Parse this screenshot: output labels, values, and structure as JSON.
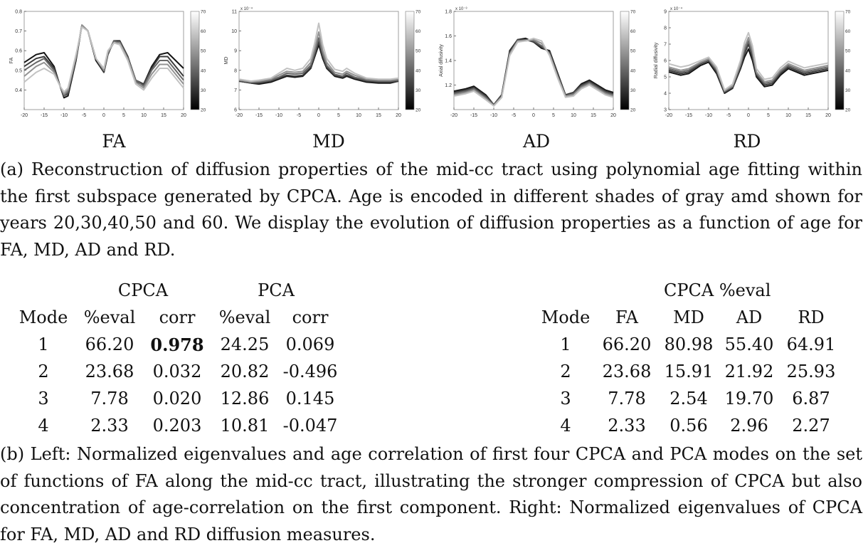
{
  "panel_labels": [
    "FA",
    "MD",
    "AD",
    "RD"
  ],
  "chart_data": [
    {
      "type": "line",
      "title": "",
      "ylabel": "FA",
      "xlim": [
        -20,
        20
      ],
      "ylim": [
        0.3,
        0.8
      ],
      "xticks": [
        -20,
        -15,
        -10,
        -5,
        0,
        5,
        10,
        15,
        20
      ],
      "yticks": [
        0.4,
        0.5,
        0.6,
        0.7,
        0.8
      ],
      "ytick_labels": [
        "0.4",
        "0.5",
        "0.6",
        "0.7",
        "0.8"
      ],
      "colorbar": {
        "ticks": [
          20,
          30,
          40,
          50,
          60,
          70
        ]
      },
      "x": [
        -20,
        -17,
        -15,
        -12.5,
        -11,
        -10,
        -9,
        -7,
        -5.5,
        -4,
        -2,
        0,
        1,
        2.5,
        4,
        6,
        8,
        10,
        12,
        14,
        16,
        18,
        20
      ],
      "series": [
        {
          "age": 20,
          "values": [
            0.54,
            0.58,
            0.59,
            0.52,
            0.42,
            0.36,
            0.37,
            0.55,
            0.73,
            0.7,
            0.55,
            0.49,
            0.58,
            0.65,
            0.65,
            0.57,
            0.44,
            0.43,
            0.52,
            0.58,
            0.59,
            0.55,
            0.51
          ]
        },
        {
          "age": 30,
          "values": [
            0.52,
            0.56,
            0.57,
            0.51,
            0.42,
            0.37,
            0.38,
            0.56,
            0.73,
            0.7,
            0.56,
            0.49,
            0.58,
            0.65,
            0.65,
            0.57,
            0.45,
            0.43,
            0.51,
            0.57,
            0.57,
            0.52,
            0.47
          ]
        },
        {
          "age": 40,
          "values": [
            0.5,
            0.54,
            0.56,
            0.5,
            0.42,
            0.37,
            0.39,
            0.56,
            0.73,
            0.7,
            0.56,
            0.5,
            0.59,
            0.65,
            0.64,
            0.56,
            0.45,
            0.42,
            0.5,
            0.55,
            0.55,
            0.5,
            0.45
          ]
        },
        {
          "age": 50,
          "values": [
            0.47,
            0.52,
            0.54,
            0.49,
            0.42,
            0.38,
            0.4,
            0.57,
            0.73,
            0.7,
            0.56,
            0.5,
            0.59,
            0.64,
            0.64,
            0.56,
            0.44,
            0.41,
            0.48,
            0.53,
            0.53,
            0.48,
            0.43
          ]
        },
        {
          "age": 60,
          "values": [
            0.44,
            0.49,
            0.51,
            0.48,
            0.42,
            0.39,
            0.41,
            0.58,
            0.72,
            0.7,
            0.56,
            0.51,
            0.6,
            0.64,
            0.63,
            0.55,
            0.43,
            0.4,
            0.46,
            0.51,
            0.51,
            0.46,
            0.41
          ]
        }
      ]
    },
    {
      "type": "line",
      "title": "",
      "ylabel": "MD",
      "axis_multiplier": "x 10⁻⁴",
      "xlim": [
        -20,
        20
      ],
      "ylim": [
        6,
        11
      ],
      "xticks": [
        -20,
        -15,
        -10,
        -5,
        0,
        5,
        10,
        15,
        20
      ],
      "yticks": [
        6,
        7,
        8,
        9,
        10,
        11
      ],
      "ytick_labels": [
        "6",
        "7",
        "8",
        "9",
        "10",
        "11"
      ],
      "colorbar": {
        "ticks": [
          20,
          30,
          40,
          50,
          60,
          70
        ]
      },
      "x": [
        -20,
        -17,
        -15,
        -12,
        -10,
        -8,
        -6,
        -4,
        -2,
        -1,
        0,
        1,
        2,
        4,
        6,
        7,
        9,
        12,
        15,
        18,
        20
      ],
      "series": [
        {
          "age": 20,
          "values": [
            7.45,
            7.35,
            7.3,
            7.4,
            7.55,
            7.7,
            7.65,
            7.7,
            8.1,
            8.7,
            9.3,
            8.6,
            8.1,
            7.7,
            7.6,
            7.7,
            7.55,
            7.4,
            7.35,
            7.35,
            7.45
          ]
        },
        {
          "age": 30,
          "values": [
            7.45,
            7.35,
            7.35,
            7.45,
            7.6,
            7.75,
            7.7,
            7.75,
            8.15,
            8.8,
            9.45,
            8.7,
            8.15,
            7.75,
            7.65,
            7.75,
            7.6,
            7.45,
            7.4,
            7.4,
            7.45
          ]
        },
        {
          "age": 40,
          "values": [
            7.5,
            7.4,
            7.4,
            7.5,
            7.65,
            7.85,
            7.8,
            7.85,
            8.25,
            8.9,
            9.65,
            8.8,
            8.25,
            7.8,
            7.7,
            7.85,
            7.65,
            7.5,
            7.45,
            7.45,
            7.5
          ]
        },
        {
          "age": 50,
          "values": [
            7.5,
            7.4,
            7.45,
            7.55,
            7.75,
            7.95,
            7.9,
            7.95,
            8.4,
            9.1,
            9.95,
            9.0,
            8.4,
            7.9,
            7.8,
            7.95,
            7.75,
            7.55,
            7.5,
            7.5,
            7.55
          ]
        },
        {
          "age": 60,
          "values": [
            7.55,
            7.45,
            7.5,
            7.6,
            7.85,
            8.1,
            8.0,
            8.1,
            8.6,
            9.4,
            10.4,
            9.3,
            8.6,
            8.05,
            7.95,
            8.1,
            7.85,
            7.6,
            7.55,
            7.55,
            7.6
          ]
        }
      ]
    },
    {
      "type": "line",
      "title": "",
      "ylabel": "Axial diffusivity",
      "axis_multiplier": "x 10⁻³",
      "xlim": [
        -20,
        20
      ],
      "ylim": [
        1.0,
        1.8
      ],
      "xticks": [
        -20,
        -15,
        -10,
        -5,
        0,
        5,
        10,
        15,
        20
      ],
      "yticks": [
        1.2,
        1.4,
        1.6,
        1.8
      ],
      "ytick_labels": [
        "1.2",
        "1.4",
        "1.6",
        "1.8"
      ],
      "colorbar": {
        "ticks": [
          20,
          30,
          40,
          50,
          60,
          70
        ]
      },
      "x": [
        -20,
        -17,
        -15,
        -12,
        -10,
        -8,
        -6,
        -4,
        -2,
        0,
        2,
        4,
        6,
        8,
        10,
        12,
        14,
        16,
        18,
        20
      ],
      "series": [
        {
          "age": 20,
          "values": [
            1.15,
            1.17,
            1.19,
            1.12,
            1.04,
            1.12,
            1.48,
            1.57,
            1.58,
            1.55,
            1.5,
            1.48,
            1.3,
            1.12,
            1.14,
            1.21,
            1.24,
            1.2,
            1.16,
            1.14
          ]
        },
        {
          "age": 30,
          "values": [
            1.14,
            1.16,
            1.18,
            1.11,
            1.04,
            1.12,
            1.47,
            1.57,
            1.57,
            1.55,
            1.51,
            1.47,
            1.29,
            1.12,
            1.14,
            1.2,
            1.23,
            1.19,
            1.15,
            1.13
          ]
        },
        {
          "age": 40,
          "values": [
            1.13,
            1.15,
            1.17,
            1.1,
            1.04,
            1.11,
            1.46,
            1.56,
            1.57,
            1.56,
            1.52,
            1.46,
            1.28,
            1.11,
            1.13,
            1.19,
            1.22,
            1.18,
            1.14,
            1.12
          ]
        },
        {
          "age": 50,
          "values": [
            1.12,
            1.14,
            1.16,
            1.09,
            1.03,
            1.1,
            1.45,
            1.56,
            1.56,
            1.57,
            1.54,
            1.45,
            1.27,
            1.11,
            1.12,
            1.18,
            1.21,
            1.17,
            1.13,
            1.11
          ]
        },
        {
          "age": 60,
          "values": [
            1.11,
            1.13,
            1.15,
            1.08,
            1.03,
            1.1,
            1.44,
            1.55,
            1.56,
            1.58,
            1.56,
            1.44,
            1.26,
            1.1,
            1.11,
            1.17,
            1.2,
            1.16,
            1.12,
            1.1
          ]
        }
      ]
    },
    {
      "type": "line",
      "title": "",
      "ylabel": "Radial diffusivity",
      "axis_multiplier": "x 10⁻⁴",
      "xlim": [
        -20,
        20
      ],
      "ylim": [
        3,
        9
      ],
      "xticks": [
        -20,
        -15,
        -10,
        -5,
        0,
        5,
        10,
        15,
        20
      ],
      "yticks": [
        3,
        4,
        5,
        6,
        7,
        8,
        9
      ],
      "ytick_labels": [
        "3",
        "4",
        "5",
        "6",
        "7",
        "8",
        "9"
      ],
      "colorbar": {
        "ticks": [
          20,
          30,
          40,
          50,
          60,
          70
        ]
      },
      "x": [
        -20,
        -17,
        -15,
        -12,
        -10,
        -8,
        -6,
        -4,
        -2,
        -1,
        0,
        1,
        2,
        4,
        6,
        8,
        10,
        12,
        14,
        16,
        18,
        20
      ],
      "series": [
        {
          "age": 20,
          "values": [
            5.3,
            5.1,
            5.2,
            5.7,
            5.9,
            5.2,
            4.0,
            4.3,
            5.5,
            6.2,
            6.7,
            6.0,
            5.0,
            4.4,
            4.5,
            5.1,
            5.5,
            5.3,
            5.1,
            5.2,
            5.3,
            5.4
          ]
        },
        {
          "age": 30,
          "values": [
            5.4,
            5.2,
            5.3,
            5.8,
            6.0,
            5.3,
            4.05,
            4.35,
            5.6,
            6.4,
            7.0,
            6.2,
            5.1,
            4.5,
            4.6,
            5.2,
            5.6,
            5.4,
            5.2,
            5.3,
            5.4,
            5.5
          ]
        },
        {
          "age": 40,
          "values": [
            5.5,
            5.3,
            5.4,
            5.85,
            6.05,
            5.4,
            4.1,
            4.4,
            5.7,
            6.6,
            7.2,
            6.4,
            5.2,
            4.6,
            4.7,
            5.3,
            5.7,
            5.5,
            5.3,
            5.4,
            5.5,
            5.6
          ]
        },
        {
          "age": 50,
          "values": [
            5.6,
            5.4,
            5.5,
            5.9,
            6.1,
            5.5,
            4.15,
            4.45,
            5.8,
            6.8,
            7.4,
            6.6,
            5.3,
            4.7,
            4.8,
            5.4,
            5.8,
            5.6,
            5.4,
            5.5,
            5.6,
            5.7
          ]
        },
        {
          "age": 60,
          "values": [
            5.8,
            5.6,
            5.7,
            6.0,
            6.2,
            5.6,
            4.2,
            4.55,
            6.0,
            7.1,
            7.7,
            6.9,
            5.5,
            4.85,
            4.95,
            5.55,
            5.95,
            5.75,
            5.55,
            5.65,
            5.75,
            5.85
          ]
        }
      ]
    }
  ],
  "caption_a": "(a) Reconstruction of diffusion properties of the mid-cc tract using polynomial age fitting within the first subspace generated by CPCA. Age is encoded in different shades of gray amd shown for years 20,30,40,50 and 60. We display the evolution of diffusion properties as a function of age for FA, MD, AD and RD.",
  "table_left": {
    "group_headers": [
      "CPCA",
      "PCA"
    ],
    "columns": [
      "Mode",
      "%eval",
      "corr",
      "%eval",
      "corr"
    ],
    "rows": [
      [
        "1",
        "66.20",
        "0.978",
        "24.25",
        "0.069"
      ],
      [
        "2",
        "23.68",
        "0.032",
        "20.82",
        "-0.496"
      ],
      [
        "3",
        "7.78",
        "0.020",
        "12.86",
        "0.145"
      ],
      [
        "4",
        "2.33",
        "0.203",
        "10.81",
        "-0.047"
      ]
    ]
  },
  "table_right": {
    "group_header": "CPCA %eval",
    "columns": [
      "Mode",
      "FA",
      "MD",
      "AD",
      "RD"
    ],
    "rows": [
      [
        "1",
        "66.20",
        "80.98",
        "55.40",
        "64.91"
      ],
      [
        "2",
        "23.68",
        "15.91",
        "21.92",
        "25.93"
      ],
      [
        "3",
        "7.78",
        "2.54",
        "19.70",
        "6.87"
      ],
      [
        "4",
        "2.33",
        "0.56",
        "2.96",
        "2.27"
      ]
    ]
  },
  "caption_b": "(b) Left: Normalized eigenvalues and age correlation of first four CPCA and PCA modes on the set of functions of FA along the mid-cc tract, illustrating the stronger compression of CPCA but also concentration of age-correlation on the first component. Right: Normalized eigenvalues of CPCA for FA, MD, AD and RD diffusion measures."
}
